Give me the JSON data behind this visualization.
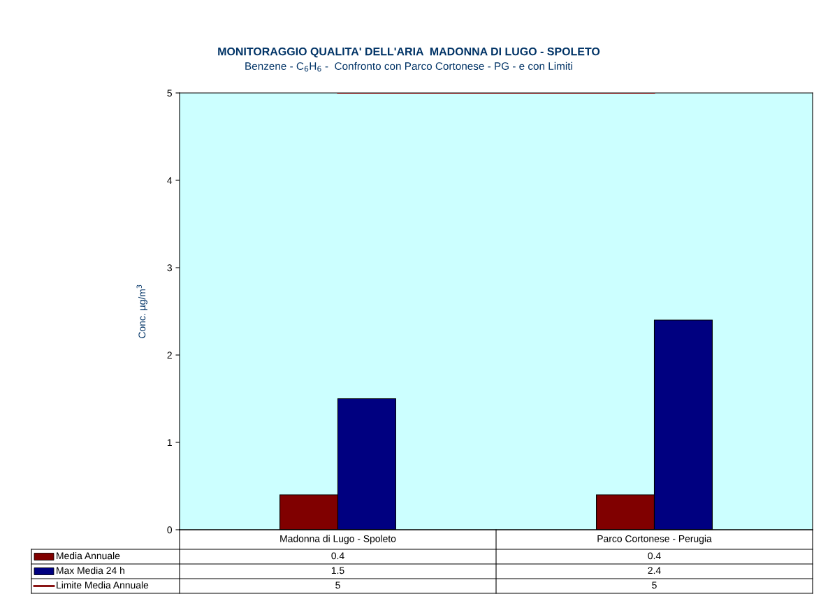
{
  "chart_data": {
    "type": "bar",
    "title": "MONITORAGGIO QUALITA' DELL'ARIA  MADONNA DI LUGO - SPOLETO",
    "subtitle": "Benzene - C$_{6}$H$_{6}$ -  Confronto con Parco Cortonese - PG - e con Limiti",
    "ylabel": "Conc. µg/m$^{3}$",
    "categories": [
      "Madonna di Lugo - Spoleto",
      "Parco Cortonese - Perugia"
    ],
    "series": [
      {
        "name": "Media Annuale",
        "color": "#800000",
        "values": [
          0.4,
          0.4
        ]
      },
      {
        "name": "Max Media 24 h",
        "color": "#000080",
        "values": [
          1.5,
          2.4
        ]
      },
      {
        "name": "Limite Media Annuale",
        "color": "#800000",
        "values": [
          5,
          5
        ],
        "type": "line"
      }
    ],
    "ylim": [
      0,
      5
    ],
    "yticks": [
      0,
      1,
      2,
      3,
      4,
      5
    ],
    "data_labels": true,
    "legend": "bottom left"
  }
}
